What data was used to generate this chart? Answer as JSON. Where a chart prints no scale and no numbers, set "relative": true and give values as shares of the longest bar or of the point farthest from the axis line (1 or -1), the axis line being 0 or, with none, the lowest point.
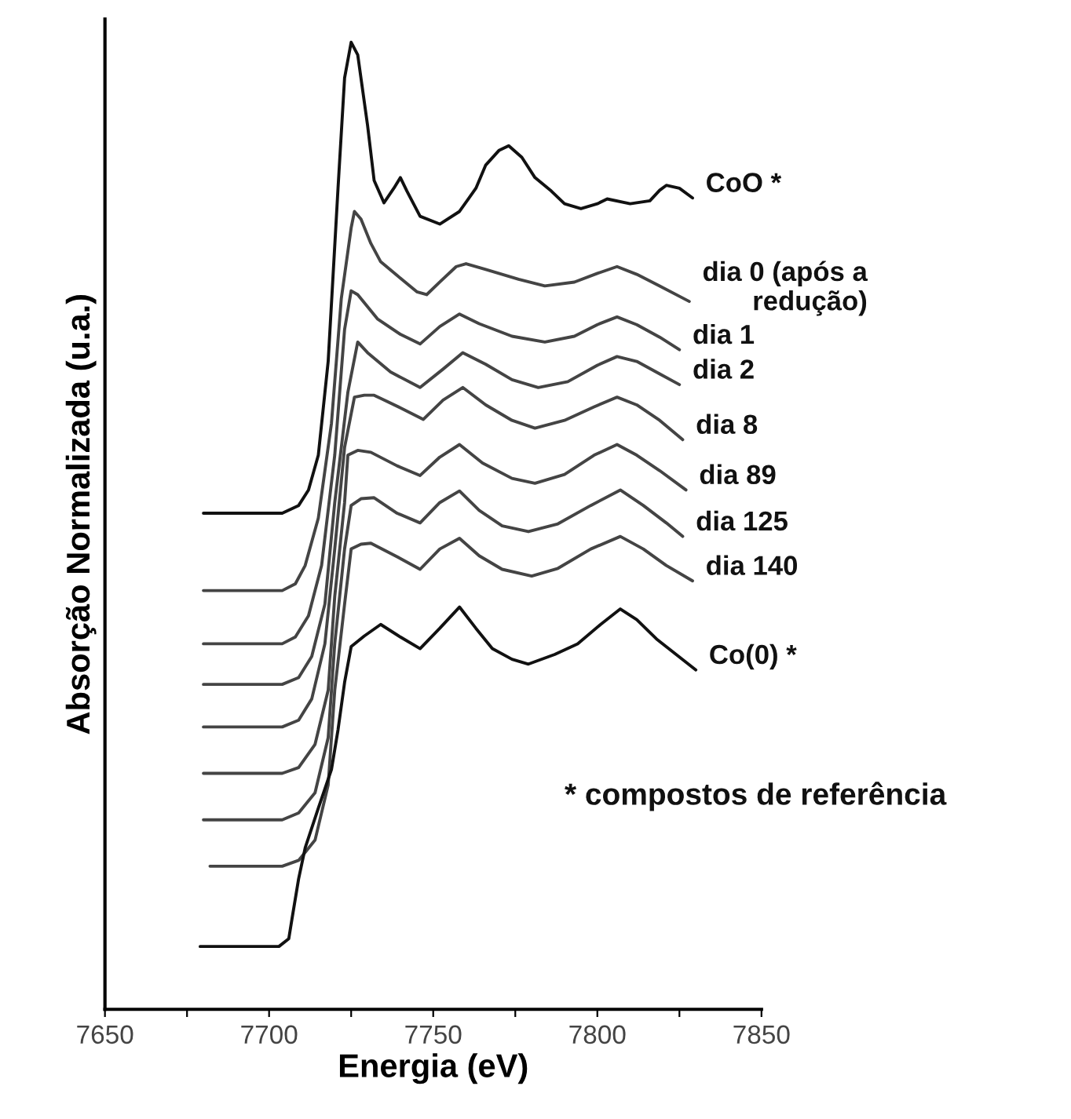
{
  "chart_data": {
    "type": "line",
    "relative": true,
    "xlabel": "Energia (eV)",
    "ylabel": "Absorção Normalizada (u.a.)",
    "xlim": [
      7650,
      7850
    ],
    "xticks": [
      7650,
      {
        "value": 7675,
        "label": null
      },
      7700,
      {
        "value": 7725,
        "label": null
      },
      7750,
      {
        "value": 7775,
        "label": null
      },
      7800,
      {
        "value": 7825,
        "label": null
      },
      7850
    ],
    "grid": false,
    "legend": false,
    "marker": "none",
    "line_style": "solid",
    "annotations": [
      "* compostos de referência"
    ],
    "series": [
      {
        "name": "CoO *",
        "color": "#111111",
        "x": [
          7680,
          7704,
          7709,
          7712,
          7715,
          7718,
          7721,
          7723,
          7725,
          7727,
          7730,
          7732,
          7735,
          7738,
          7740,
          7742,
          7746,
          7752,
          7758,
          7763,
          7766,
          7770,
          7773,
          7777,
          7781,
          7786,
          7790,
          7795,
          7800,
          7803,
          7810,
          7816,
          7819,
          7821,
          7825,
          7829
        ],
        "values": [
          0.513,
          0.513,
          0.521,
          0.537,
          0.573,
          0.67,
          0.849,
          0.963,
          1.0,
          0.987,
          0.914,
          0.857,
          0.834,
          0.849,
          0.86,
          0.846,
          0.82,
          0.812,
          0.825,
          0.849,
          0.873,
          0.888,
          0.893,
          0.881,
          0.86,
          0.846,
          0.833,
          0.828,
          0.833,
          0.838,
          0.833,
          0.836,
          0.847,
          0.852,
          0.849,
          0.839
        ]
      },
      {
        "name": "dia 0 (após a\nredução)",
        "color": "#444444",
        "x": [
          7680,
          7704,
          7708,
          7711,
          7715,
          7719,
          7722,
          7725,
          7726,
          7728,
          7731,
          7734,
          7740,
          7745,
          7748,
          7752,
          7757,
          7760,
          7766,
          7776,
          7784,
          7793,
          7800,
          7806,
          7812,
          7819,
          7828
        ],
        "values": [
          0.433,
          0.433,
          0.44,
          0.459,
          0.508,
          0.606,
          0.735,
          0.808,
          0.825,
          0.817,
          0.792,
          0.773,
          0.756,
          0.742,
          0.739,
          0.752,
          0.768,
          0.771,
          0.765,
          0.755,
          0.748,
          0.752,
          0.761,
          0.768,
          0.76,
          0.748,
          0.732
        ]
      },
      {
        "name": "dia 1",
        "color": "#444444",
        "x": [
          7680,
          7704,
          7708,
          7712,
          7716,
          7720,
          7723,
          7725,
          7727,
          7733,
          7740,
          7746,
          7752,
          7758,
          7764,
          7774,
          7784,
          7793,
          7800,
          7806,
          7812,
          7819,
          7825
        ],
        "values": [
          0.378,
          0.378,
          0.385,
          0.407,
          0.459,
          0.573,
          0.703,
          0.743,
          0.739,
          0.714,
          0.698,
          0.688,
          0.706,
          0.719,
          0.709,
          0.696,
          0.69,
          0.696,
          0.708,
          0.716,
          0.708,
          0.695,
          0.682
        ]
      },
      {
        "name": "dia 2",
        "color": "#444444",
        "x": [
          7680,
          7704,
          7709,
          7713,
          7717,
          7720,
          7724,
          7727,
          7730,
          7737,
          7746,
          7753,
          7759,
          7766,
          7774,
          7782,
          7791,
          7800,
          7806,
          7812,
          7819,
          7825
        ],
        "values": [
          0.336,
          0.336,
          0.343,
          0.365,
          0.419,
          0.524,
          0.638,
          0.69,
          0.679,
          0.659,
          0.643,
          0.662,
          0.679,
          0.667,
          0.651,
          0.643,
          0.649,
          0.666,
          0.675,
          0.67,
          0.657,
          0.646
        ]
      },
      {
        "name": "dia 8",
        "color": "#444444",
        "x": [
          7680,
          7704,
          7709,
          7713,
          7717,
          7720,
          7723,
          7726,
          7729,
          7732,
          7740,
          7747,
          7753,
          7759,
          7766,
          7774,
          7781,
          7790,
          7799,
          7806,
          7812,
          7819,
          7826
        ],
        "values": [
          0.292,
          0.292,
          0.299,
          0.321,
          0.378,
          0.476,
          0.581,
          0.633,
          0.635,
          0.635,
          0.622,
          0.61,
          0.63,
          0.643,
          0.625,
          0.609,
          0.601,
          0.609,
          0.623,
          0.633,
          0.625,
          0.609,
          0.589
        ]
      },
      {
        "name": "dia 89",
        "color": "#444444",
        "x": [
          7680,
          7704,
          7709,
          7714,
          7718,
          7720,
          7723,
          7724,
          7727,
          7731,
          7739,
          7746,
          7752,
          7758,
          7765,
          7774,
          7781,
          7790,
          7799,
          7806,
          7812,
          7819,
          7827
        ],
        "values": [
          0.244,
          0.244,
          0.25,
          0.274,
          0.33,
          0.427,
          0.524,
          0.573,
          0.578,
          0.576,
          0.562,
          0.552,
          0.571,
          0.584,
          0.565,
          0.549,
          0.544,
          0.553,
          0.573,
          0.584,
          0.573,
          0.557,
          0.537
        ]
      },
      {
        "name": "dia 125",
        "color": "#444444",
        "x": [
          7680,
          7704,
          7709,
          7714,
          7718,
          7720,
          7723,
          7725,
          7728,
          7732,
          7739,
          7746,
          7752,
          7758,
          7764,
          7771,
          7779,
          7788,
          7798,
          7807,
          7814,
          7821,
          7826
        ],
        "values": [
          0.196,
          0.196,
          0.203,
          0.224,
          0.281,
          0.378,
          0.476,
          0.521,
          0.528,
          0.529,
          0.513,
          0.503,
          0.524,
          0.536,
          0.516,
          0.5,
          0.494,
          0.502,
          0.521,
          0.537,
          0.521,
          0.503,
          0.489
        ]
      },
      {
        "name": "dia 140",
        "color": "#444444",
        "x": [
          7682,
          7704,
          7709,
          7714,
          7718,
          7720,
          7723,
          7725,
          7728,
          7731,
          7739,
          7746,
          7752,
          7758,
          7764,
          7771,
          7780,
          7788,
          7798,
          7807,
          7814,
          7821,
          7829
        ],
        "values": [
          0.148,
          0.148,
          0.154,
          0.175,
          0.232,
          0.33,
          0.419,
          0.476,
          0.481,
          0.482,
          0.468,
          0.455,
          0.476,
          0.487,
          0.469,
          0.455,
          0.448,
          0.456,
          0.476,
          0.489,
          0.476,
          0.459,
          0.443
        ]
      },
      {
        "name": "Co(0) *",
        "color": "#111111",
        "x": [
          7679,
          7703,
          7706,
          7707,
          7709,
          7711,
          7715,
          7719,
          7721,
          7723,
          7725,
          7729,
          7734,
          7740,
          7746,
          7752,
          7758,
          7763,
          7768,
          7774,
          7779,
          7787,
          7794,
          7801,
          7807,
          7812,
          7818,
          7824,
          7830
        ],
        "values": [
          0.065,
          0.065,
          0.073,
          0.094,
          0.135,
          0.167,
          0.208,
          0.248,
          0.289,
          0.338,
          0.375,
          0.386,
          0.398,
          0.385,
          0.373,
          0.394,
          0.416,
          0.394,
          0.373,
          0.362,
          0.357,
          0.367,
          0.378,
          0.398,
          0.414,
          0.403,
          0.383,
          0.367,
          0.351
        ]
      }
    ]
  }
}
